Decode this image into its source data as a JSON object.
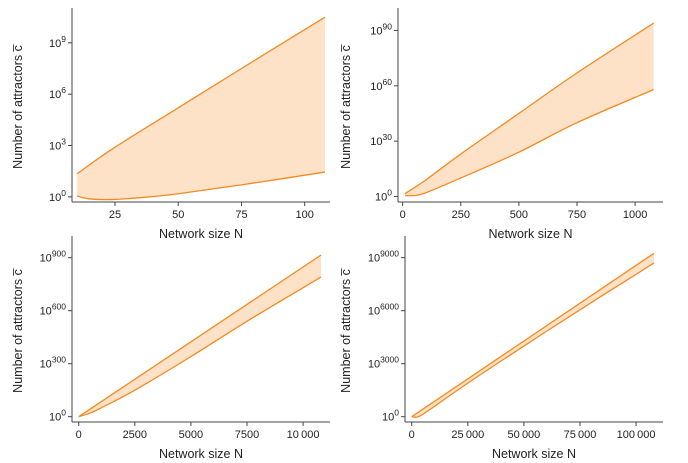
{
  "colors": {
    "line": "#f5891f",
    "fill": "#fde2c8",
    "axis": "#444444"
  },
  "chart_data": [
    {
      "type": "area",
      "title": "",
      "xlabel": "Network size N",
      "ylabel": "Number of attractors c̅",
      "xlim": [
        8,
        110
      ],
      "ylim_log10": [
        -0.3,
        10.8
      ],
      "y_scale": "log10",
      "xticks": [
        25,
        50,
        75,
        100
      ],
      "xtick_labels": [
        "25",
        "50",
        "75",
        "100"
      ],
      "yticks_log10": [
        0,
        3,
        6,
        9
      ],
      "ytick_bases": [
        "10",
        "10",
        "10",
        "10"
      ],
      "ytick_exponents": [
        "0",
        "3",
        "6",
        "9"
      ],
      "upper_log10": {
        "x": [
          10,
          25,
          50,
          75,
          108
        ],
        "y": [
          1.35,
          2.9,
          5.2,
          7.5,
          10.5
        ]
      },
      "lower_log10": {
        "x": [
          10,
          15,
          25,
          40,
          50,
          75,
          108
        ],
        "y": [
          0.05,
          -0.12,
          -0.15,
          0.02,
          0.18,
          0.7,
          1.45
        ]
      }
    },
    {
      "type": "area",
      "title": "",
      "xlabel": "Network size N",
      "ylabel": "Number of attractors c̅",
      "xlim": [
        -20,
        1120
      ],
      "ylim_log10": [
        -3,
        100
      ],
      "y_scale": "log10",
      "xticks": [
        0,
        250,
        500,
        750,
        1000
      ],
      "xtick_labels": [
        "0",
        "250",
        "500",
        "750",
        "1000"
      ],
      "yticks_log10": [
        0,
        30,
        60,
        90
      ],
      "ytick_bases": [
        "10",
        "10",
        "10",
        "10"
      ],
      "ytick_exponents": [
        "0",
        "30",
        "60",
        "90"
      ],
      "upper_log10": {
        "x": [
          10,
          100,
          250,
          500,
          750,
          1080
        ],
        "y": [
          1.5,
          9,
          23,
          45,
          67,
          94
        ]
      },
      "lower_log10": {
        "x": [
          10,
          50,
          100,
          250,
          500,
          750,
          1080
        ],
        "y": [
          0.5,
          0.5,
          2,
          10,
          24,
          40,
          58
        ]
      }
    },
    {
      "type": "area",
      "title": "",
      "xlabel": "Network size N",
      "ylabel": "Number of attractors c̅",
      "xlim": [
        -300,
        11200
      ],
      "ylim_log10": [
        -30,
        1000
      ],
      "y_scale": "log10",
      "xticks": [
        0,
        2500,
        5000,
        7500,
        10000
      ],
      "xtick_labels": [
        "0",
        "2500",
        "5000",
        "7500",
        "10 000"
      ],
      "yticks_log10": [
        0,
        300,
        600,
        900
      ],
      "ytick_bases": [
        "10",
        "10",
        "10",
        "10"
      ],
      "ytick_exponents": [
        "0",
        "300",
        "600",
        "900"
      ],
      "upper_log10": {
        "x": [
          0,
          10800
        ],
        "y": [
          0,
          915
        ]
      },
      "lower_log10": {
        "x": [
          0,
          500,
          1000,
          2500,
          5000,
          7500,
          10800
        ],
        "y": [
          0,
          20,
          50,
          150,
          340,
          540,
          790
        ]
      }
    },
    {
      "type": "area",
      "title": "",
      "xlabel": "Network size N",
      "ylabel": "Number of attractors c̅",
      "xlim": [
        -3000,
        112000
      ],
      "ylim_log10": [
        -300,
        10000
      ],
      "y_scale": "log10",
      "xticks": [
        0,
        25000,
        50000,
        75000,
        100000
      ],
      "xtick_labels": [
        "0",
        "25 000",
        "50 000",
        "75 000",
        "100 000"
      ],
      "yticks_log10": [
        0,
        3000,
        6000,
        9000
      ],
      "ytick_bases": [
        "10",
        "10",
        "10",
        "10"
      ],
      "ytick_exponents": [
        "0",
        "3000",
        "6000",
        "9000"
      ],
      "upper_log10": {
        "x": [
          0,
          108000
        ],
        "y": [
          0,
          9250
        ]
      },
      "lower_log10": {
        "x": [
          0,
          3000,
          8000,
          25000,
          50000,
          75000,
          108000
        ],
        "y": [
          0,
          0,
          400,
          1900,
          4000,
          6050,
          8700
        ]
      }
    }
  ]
}
